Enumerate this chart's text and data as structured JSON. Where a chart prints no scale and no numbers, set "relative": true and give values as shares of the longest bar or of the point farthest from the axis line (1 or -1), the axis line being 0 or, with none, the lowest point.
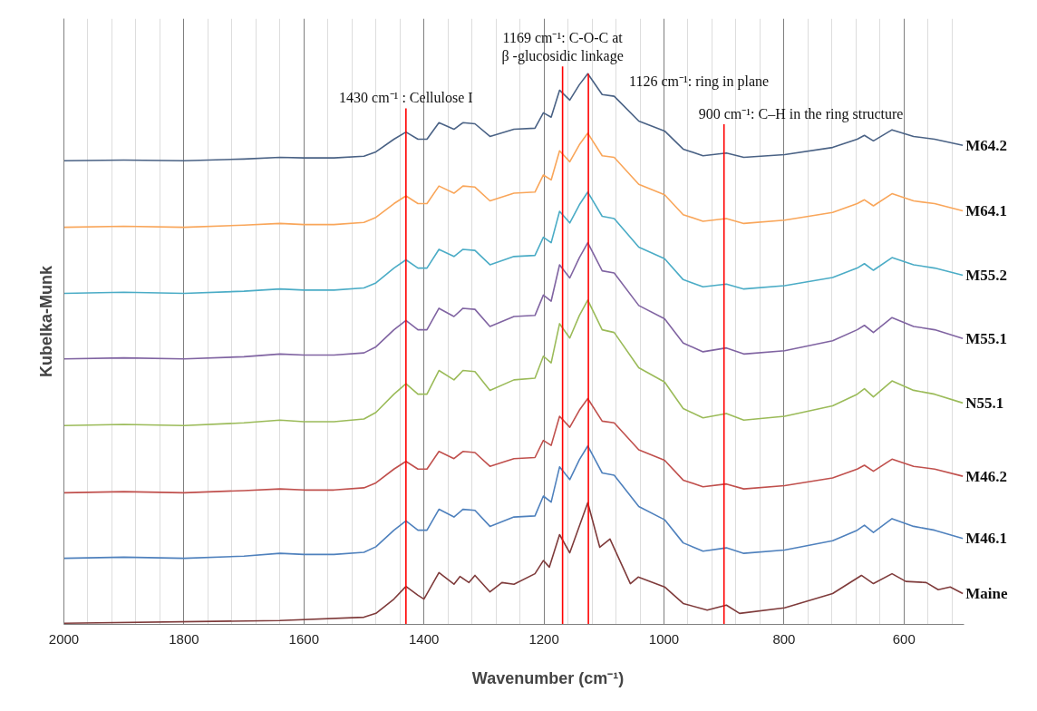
{
  "chart_data": {
    "type": "line",
    "relative": true,
    "xlabel": "Wavenumber (cm⁻¹)",
    "ylabel": "Kubelka-Munk",
    "xlim": [
      2000,
      500
    ],
    "xticks": [
      2000,
      1800,
      1600,
      1400,
      1200,
      1000,
      800,
      600
    ],
    "grid": "x",
    "x": [
      2000,
      1900,
      1800,
      1700,
      1640,
      1600,
      1550,
      1500,
      1480,
      1450,
      1430,
      1410,
      1395,
      1375,
      1350,
      1335,
      1315,
      1290,
      1250,
      1215,
      1201,
      1188,
      1174,
      1157,
      1141,
      1127,
      1103,
      1083,
      1042,
      999,
      968,
      935,
      896,
      867,
      799,
      719,
      678,
      666,
      651,
      620,
      584,
      549,
      502
    ],
    "series": [
      {
        "name": "M64.2",
        "color": "#4a6285",
        "values": [
          0.842,
          0.843,
          0.842,
          0.845,
          0.848,
          0.847,
          0.847,
          0.85,
          0.858,
          0.881,
          0.894,
          0.881,
          0.881,
          0.911,
          0.899,
          0.911,
          0.909,
          0.886,
          0.899,
          0.901,
          0.929,
          0.921,
          0.97,
          0.952,
          0.98,
          1,
          0.962,
          0.959,
          0.914,
          0.896,
          0.863,
          0.851,
          0.856,
          0.848,
          0.853,
          0.866,
          0.881,
          0.888,
          0.878,
          0.898,
          0.886,
          0.881,
          0.87
        ]
      },
      {
        "name": "M64.1",
        "color": "#f9a65a",
        "values": [
          0.721,
          0.723,
          0.721,
          0.725,
          0.728,
          0.726,
          0.726,
          0.73,
          0.739,
          0.764,
          0.778,
          0.764,
          0.764,
          0.796,
          0.783,
          0.796,
          0.794,
          0.769,
          0.783,
          0.785,
          0.816,
          0.807,
          0.86,
          0.84,
          0.871,
          0.892,
          0.851,
          0.848,
          0.799,
          0.78,
          0.744,
          0.732,
          0.737,
          0.728,
          0.734,
          0.748,
          0.764,
          0.771,
          0.76,
          0.782,
          0.769,
          0.764,
          0.751
        ]
      },
      {
        "name": "M55.2",
        "color": "#4bacc6",
        "values": [
          0.601,
          0.603,
          0.601,
          0.605,
          0.609,
          0.607,
          0.607,
          0.611,
          0.62,
          0.647,
          0.662,
          0.647,
          0.647,
          0.681,
          0.668,
          0.681,
          0.679,
          0.653,
          0.668,
          0.67,
          0.703,
          0.693,
          0.75,
          0.729,
          0.762,
          0.785,
          0.741,
          0.737,
          0.685,
          0.664,
          0.626,
          0.613,
          0.618,
          0.609,
          0.615,
          0.63,
          0.647,
          0.655,
          0.643,
          0.666,
          0.653,
          0.647,
          0.634
        ]
      },
      {
        "name": "M55.1",
        "color": "#8064a2",
        "values": [
          0.482,
          0.484,
          0.482,
          0.486,
          0.491,
          0.489,
          0.489,
          0.493,
          0.504,
          0.535,
          0.552,
          0.535,
          0.535,
          0.574,
          0.559,
          0.574,
          0.572,
          0.541,
          0.559,
          0.561,
          0.598,
          0.587,
          0.653,
          0.629,
          0.666,
          0.693,
          0.642,
          0.638,
          0.579,
          0.555,
          0.511,
          0.495,
          0.502,
          0.491,
          0.497,
          0.515,
          0.535,
          0.543,
          0.53,
          0.557,
          0.541,
          0.535,
          0.519
        ]
      },
      {
        "name": "N55.1",
        "color": "#9bbb59",
        "values": [
          0.361,
          0.363,
          0.361,
          0.366,
          0.371,
          0.368,
          0.368,
          0.373,
          0.385,
          0.418,
          0.437,
          0.418,
          0.418,
          0.461,
          0.444,
          0.461,
          0.459,
          0.425,
          0.444,
          0.447,
          0.487,
          0.475,
          0.546,
          0.52,
          0.561,
          0.589,
          0.535,
          0.53,
          0.466,
          0.44,
          0.392,
          0.375,
          0.383,
          0.371,
          0.378,
          0.397,
          0.418,
          0.428,
          0.413,
          0.442,
          0.425,
          0.418,
          0.402
        ]
      },
      {
        "name": "M46.2",
        "color": "#c0504d",
        "values": [
          0.239,
          0.241,
          0.239,
          0.243,
          0.246,
          0.244,
          0.244,
          0.248,
          0.257,
          0.282,
          0.296,
          0.282,
          0.282,
          0.314,
          0.301,
          0.314,
          0.312,
          0.287,
          0.301,
          0.303,
          0.334,
          0.325,
          0.378,
          0.358,
          0.389,
          0.41,
          0.369,
          0.366,
          0.317,
          0.298,
          0.262,
          0.25,
          0.255,
          0.246,
          0.252,
          0.266,
          0.282,
          0.289,
          0.278,
          0.3,
          0.287,
          0.282,
          0.269
        ]
      },
      {
        "name": "M46.1",
        "color": "#4f81bd",
        "values": [
          0.12,
          0.122,
          0.12,
          0.124,
          0.129,
          0.127,
          0.127,
          0.131,
          0.141,
          0.171,
          0.188,
          0.171,
          0.171,
          0.209,
          0.195,
          0.209,
          0.207,
          0.178,
          0.195,
          0.197,
          0.233,
          0.222,
          0.286,
          0.263,
          0.299,
          0.324,
          0.275,
          0.271,
          0.214,
          0.19,
          0.148,
          0.133,
          0.139,
          0.129,
          0.135,
          0.152,
          0.171,
          0.18,
          0.167,
          0.192,
          0.178,
          0.171,
          0.156
        ]
      },
      {
        "name": "Maine",
        "color": "#7f3b3b",
        "x": [
          2000,
          1640,
          1500,
          1480,
          1450,
          1430,
          1410,
          1400,
          1375,
          1350,
          1340,
          1325,
          1315,
          1290,
          1270,
          1250,
          1215,
          1201,
          1191,
          1174,
          1157,
          1127,
          1107,
          1090,
          1056,
          1043,
          999,
          968,
          928,
          896,
          874,
          799,
          719,
          671,
          651,
          620,
          597,
          563,
          543,
          523,
          502
        ],
        "values": [
          0.002,
          0.007,
          0.013,
          0.02,
          0.046,
          0.069,
          0.053,
          0.046,
          0.094,
          0.073,
          0.087,
          0.076,
          0.089,
          0.059,
          0.076,
          0.073,
          0.092,
          0.116,
          0.104,
          0.163,
          0.13,
          0.221,
          0.14,
          0.155,
          0.074,
          0.086,
          0.068,
          0.038,
          0.026,
          0.035,
          0.02,
          0.03,
          0.056,
          0.089,
          0.074,
          0.092,
          0.078,
          0.076,
          0.063,
          0.068,
          0.056
        ]
      }
    ],
    "ref_lines": [
      {
        "axis": "x",
        "value": 1430,
        "label": "1430 cm⁻¹ : Cellulose I",
        "color": "#ff0000"
      },
      {
        "axis": "x",
        "value": 1169,
        "label": "1169 cm⁻¹: C-O-C at\nβ -glucosidic linkage",
        "color": "#ff0000"
      },
      {
        "axis": "x",
        "value": 1126,
        "label": "1126 cm⁻¹: ring in plane",
        "color": "#ff0000"
      },
      {
        "axis": "x",
        "value": 900,
        "label": "900 cm⁻¹: C–H in the ring structure",
        "color": "#ff0000"
      }
    ]
  }
}
